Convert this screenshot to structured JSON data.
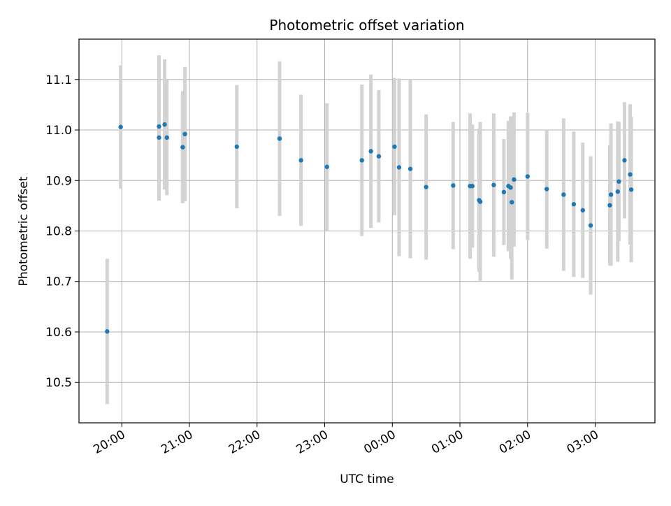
{
  "chart_data": {
    "type": "scatter",
    "title": "Photometric offset variation",
    "xlabel": "UTC time",
    "ylabel": "Photometric offset",
    "grid": true,
    "x_ticks": [
      "20:00",
      "21:00",
      "22:00",
      "23:00",
      "00:00",
      "01:00",
      "02:00",
      "03:00"
    ],
    "y_ticks": [
      "10.5",
      "10.6",
      "10.7",
      "10.8",
      "10.9",
      "11.0",
      "11.1"
    ],
    "xlim": [
      "19:22",
      "03:53"
    ],
    "ylim": [
      10.42,
      11.18
    ],
    "colors": {
      "point": "#1f77b4",
      "errorbar": "#d3d3d3",
      "grid": "#b0b0b0"
    },
    "series": [
      {
        "x": [
          "19:47",
          "19:59",
          "20:33",
          "20:33",
          "20:38",
          "20:40",
          "20:54",
          "20:56",
          "21:42",
          "22:20",
          "22:39",
          "23:02",
          "23:33",
          "23:41",
          "23:48",
          "00:02",
          "00:06",
          "00:16",
          "00:30",
          "00:54",
          "01:09",
          "01:11",
          "01:17",
          "01:18",
          "01:30",
          "01:39",
          "01:43",
          "01:45",
          "01:46",
          "01:48",
          "02:00",
          "02:17",
          "02:32",
          "02:41",
          "02:49",
          "02:56",
          "03:13",
          "03:14",
          "03:20",
          "03:21",
          "03:26",
          "03:31",
          "03:32"
        ],
        "y": [
          10.601,
          11.006,
          11.007,
          10.985,
          11.011,
          10.985,
          10.966,
          10.992,
          10.967,
          10.983,
          10.94,
          10.927,
          10.94,
          10.958,
          10.948,
          10.967,
          10.926,
          10.923,
          10.887,
          10.89,
          10.889,
          10.889,
          10.861,
          10.858,
          10.891,
          10.877,
          10.889,
          10.886,
          10.857,
          10.902,
          10.908,
          10.883,
          10.872,
          10.853,
          10.841,
          10.811,
          10.851,
          10.872,
          10.878,
          10.898,
          10.94,
          10.912,
          10.882
        ],
        "y_err": [
          0.144,
          0.122,
          0.141,
          0.125,
          0.129,
          0.114,
          0.111,
          0.133,
          0.122,
          0.153,
          0.13,
          0.126,
          0.15,
          0.152,
          0.131,
          0.136,
          0.176,
          0.177,
          0.144,
          0.126,
          0.144,
          0.122,
          0.142,
          0.158,
          0.142,
          0.105,
          0.129,
          0.141,
          0.153,
          0.133,
          0.126,
          0.118,
          0.151,
          0.144,
          0.134,
          0.137,
          0.119,
          0.141,
          0.139,
          0.118,
          0.115,
          0.139,
          0.144
        ]
      }
    ]
  }
}
